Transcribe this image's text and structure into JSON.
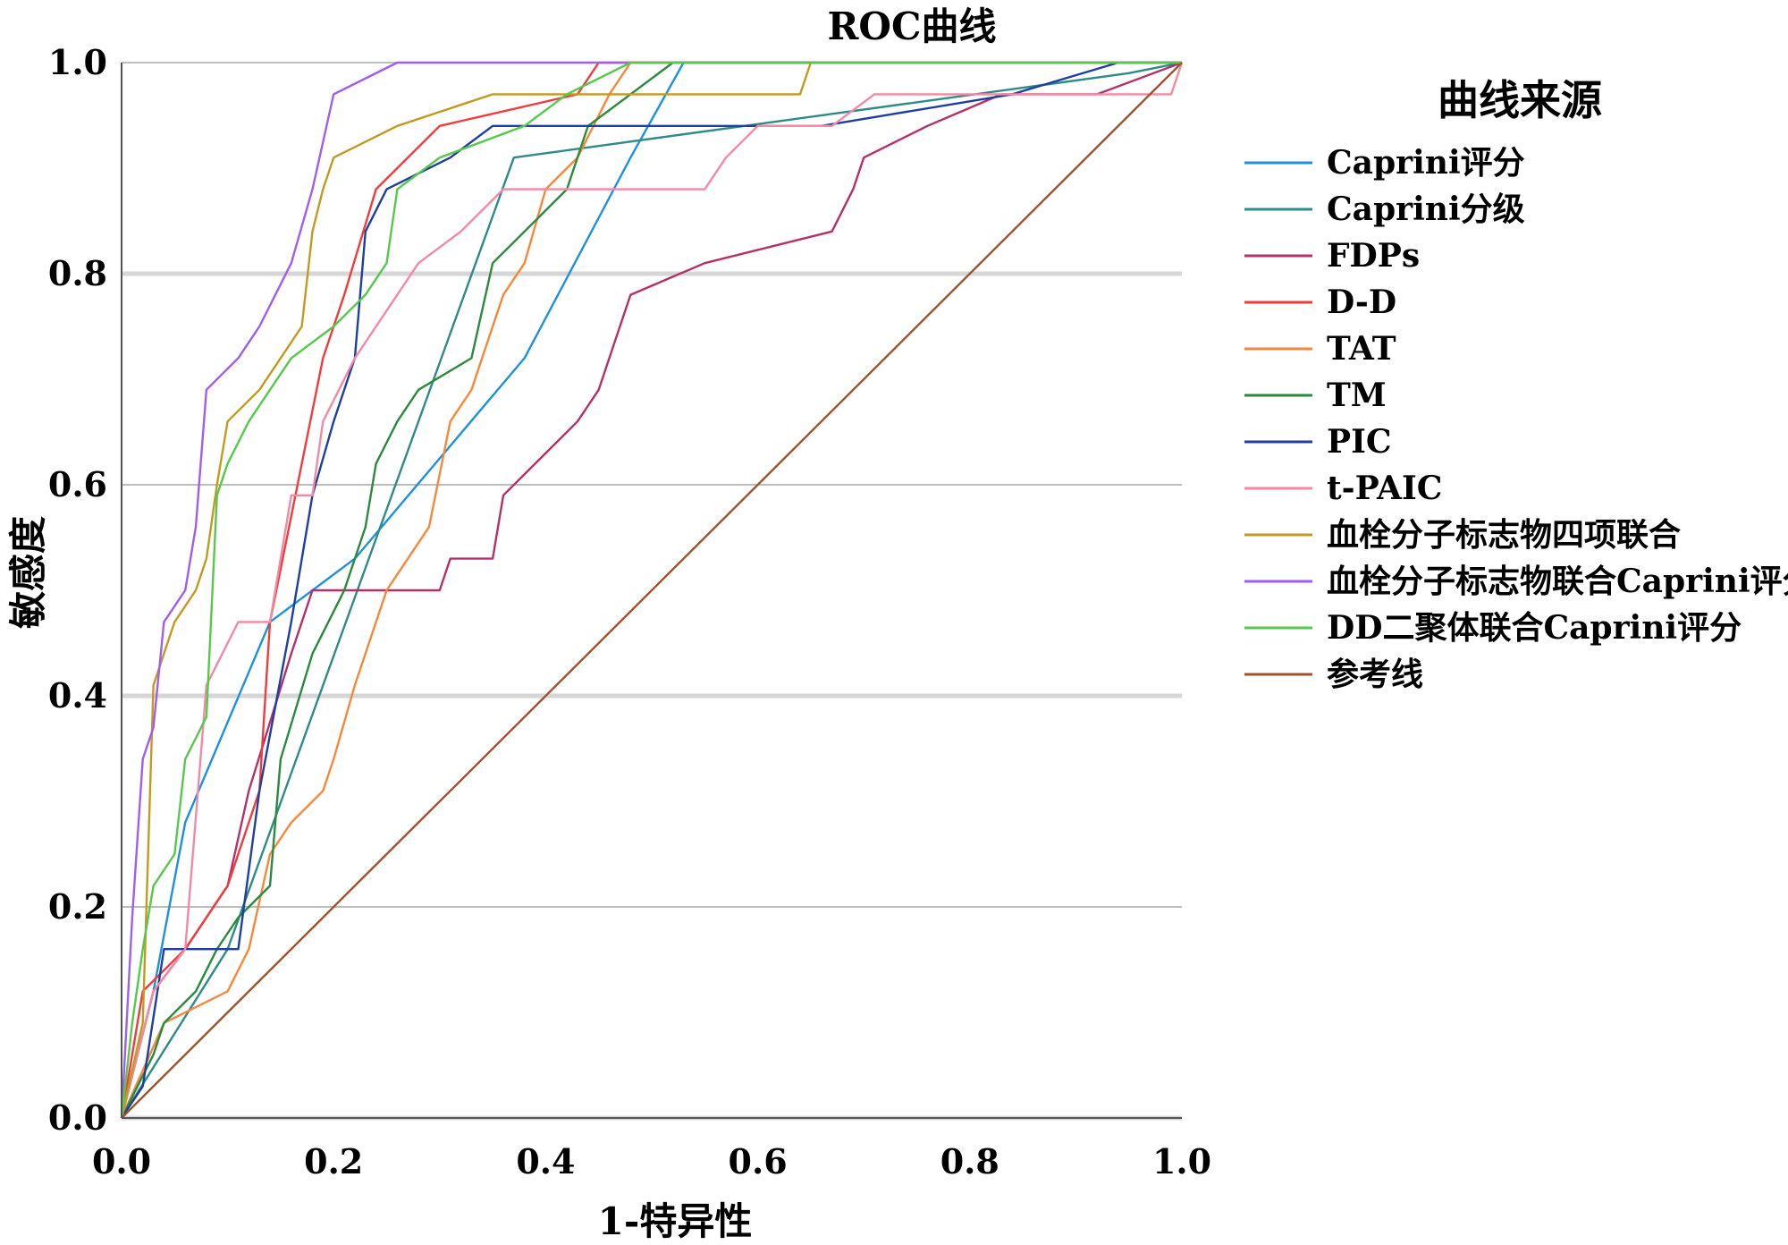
{
  "chart_data": {
    "type": "line",
    "title": "ROC曲线",
    "xlabel": "1-特异性",
    "ylabel": "敏感度",
    "xlim": [
      0,
      1
    ],
    "ylim": [
      0,
      1
    ],
    "x_ticks": [
      "0.0",
      "0.2",
      "0.4",
      "0.6",
      "0.8",
      "1.0"
    ],
    "y_ticks": [
      "0.0",
      "0.2",
      "0.4",
      "0.6",
      "0.8",
      "1.0"
    ],
    "grid": "horizontal",
    "legend_title": "曲线来源",
    "legend_position": "right",
    "series": [
      {
        "name": "Caprini评分",
        "color": "#1e90e0",
        "points": [
          [
            0,
            0
          ],
          [
            0.03,
            0.12
          ],
          [
            0.06,
            0.28
          ],
          [
            0.14,
            0.47
          ],
          [
            0.22,
            0.53
          ],
          [
            0.38,
            0.72
          ],
          [
            0.48,
            0.91
          ],
          [
            0.53,
            1.0
          ],
          [
            1.0,
            1.0
          ]
        ]
      },
      {
        "name": "Caprini分级",
        "color": "#2e8b87",
        "points": [
          [
            0,
            0
          ],
          [
            0.1,
            0.16
          ],
          [
            0.37,
            0.91
          ],
          [
            0.95,
            0.99
          ],
          [
            1.0,
            1.0
          ]
        ]
      },
      {
        "name": "FDPs",
        "color": "#b5306a",
        "points": [
          [
            0,
            0
          ],
          [
            0.03,
            0.12
          ],
          [
            0.06,
            0.16
          ],
          [
            0.1,
            0.22
          ],
          [
            0.12,
            0.31
          ],
          [
            0.16,
            0.44
          ],
          [
            0.18,
            0.5
          ],
          [
            0.3,
            0.5
          ],
          [
            0.31,
            0.53
          ],
          [
            0.35,
            0.53
          ],
          [
            0.36,
            0.59
          ],
          [
            0.4,
            0.63
          ],
          [
            0.43,
            0.66
          ],
          [
            0.45,
            0.69
          ],
          [
            0.47,
            0.75
          ],
          [
            0.48,
            0.78
          ],
          [
            0.55,
            0.81
          ],
          [
            0.67,
            0.84
          ],
          [
            0.69,
            0.88
          ],
          [
            0.7,
            0.91
          ],
          [
            0.76,
            0.94
          ],
          [
            0.83,
            0.97
          ],
          [
            0.92,
            0.97
          ],
          [
            1.0,
            1.0
          ]
        ]
      },
      {
        "name": "D-D",
        "color": "#f03c3c",
        "points": [
          [
            0,
            0
          ],
          [
            0.02,
            0.12
          ],
          [
            0.06,
            0.16
          ],
          [
            0.1,
            0.22
          ],
          [
            0.13,
            0.31
          ],
          [
            0.14,
            0.47
          ],
          [
            0.19,
            0.72
          ],
          [
            0.21,
            0.78
          ],
          [
            0.24,
            0.88
          ],
          [
            0.3,
            0.94
          ],
          [
            0.43,
            0.97
          ],
          [
            0.45,
            1.0
          ],
          [
            1.0,
            1.0
          ]
        ]
      },
      {
        "name": "TAT",
        "color": "#f7883a",
        "points": [
          [
            0,
            0
          ],
          [
            0.04,
            0.09
          ],
          [
            0.1,
            0.12
          ],
          [
            0.12,
            0.16
          ],
          [
            0.14,
            0.25
          ],
          [
            0.16,
            0.28
          ],
          [
            0.19,
            0.31
          ],
          [
            0.2,
            0.34
          ],
          [
            0.22,
            0.41
          ],
          [
            0.25,
            0.5
          ],
          [
            0.29,
            0.56
          ],
          [
            0.31,
            0.66
          ],
          [
            0.33,
            0.69
          ],
          [
            0.34,
            0.72
          ],
          [
            0.36,
            0.78
          ],
          [
            0.38,
            0.81
          ],
          [
            0.4,
            0.88
          ],
          [
            0.43,
            0.91
          ],
          [
            0.46,
            0.97
          ],
          [
            0.48,
            1.0
          ],
          [
            1.0,
            1.0
          ]
        ]
      },
      {
        "name": "TM",
        "color": "#2a8a3e",
        "points": [
          [
            0,
            0
          ],
          [
            0.03,
            0.06
          ],
          [
            0.04,
            0.09
          ],
          [
            0.07,
            0.12
          ],
          [
            0.09,
            0.16
          ],
          [
            0.11,
            0.19
          ],
          [
            0.14,
            0.22
          ],
          [
            0.15,
            0.34
          ],
          [
            0.18,
            0.44
          ],
          [
            0.21,
            0.5
          ],
          [
            0.23,
            0.56
          ],
          [
            0.24,
            0.62
          ],
          [
            0.26,
            0.66
          ],
          [
            0.28,
            0.69
          ],
          [
            0.33,
            0.72
          ],
          [
            0.35,
            0.81
          ],
          [
            0.38,
            0.84
          ],
          [
            0.42,
            0.88
          ],
          [
            0.44,
            0.94
          ],
          [
            0.48,
            0.97
          ],
          [
            0.52,
            1.0
          ],
          [
            1.0,
            1.0
          ]
        ]
      },
      {
        "name": "PIC",
        "color": "#1e3fa0",
        "points": [
          [
            0,
            0
          ],
          [
            0.02,
            0.03
          ],
          [
            0.04,
            0.16
          ],
          [
            0.11,
            0.16
          ],
          [
            0.13,
            0.31
          ],
          [
            0.16,
            0.47
          ],
          [
            0.18,
            0.59
          ],
          [
            0.2,
            0.66
          ],
          [
            0.22,
            0.72
          ],
          [
            0.23,
            0.84
          ],
          [
            0.25,
            0.88
          ],
          [
            0.31,
            0.91
          ],
          [
            0.35,
            0.94
          ],
          [
            0.66,
            0.94
          ],
          [
            0.84,
            0.97
          ],
          [
            0.94,
            1.0
          ],
          [
            1.0,
            1.0
          ]
        ]
      },
      {
        "name": "t-PAIC",
        "color": "#f28aa3",
        "points": [
          [
            0,
            0
          ],
          [
            0.03,
            0.12
          ],
          [
            0.06,
            0.16
          ],
          [
            0.08,
            0.41
          ],
          [
            0.11,
            0.47
          ],
          [
            0.14,
            0.47
          ],
          [
            0.16,
            0.59
          ],
          [
            0.18,
            0.59
          ],
          [
            0.19,
            0.66
          ],
          [
            0.22,
            0.72
          ],
          [
            0.26,
            0.78
          ],
          [
            0.28,
            0.81
          ],
          [
            0.32,
            0.84
          ],
          [
            0.36,
            0.88
          ],
          [
            0.41,
            0.88
          ],
          [
            0.55,
            0.88
          ],
          [
            0.57,
            0.91
          ],
          [
            0.6,
            0.94
          ],
          [
            0.67,
            0.94
          ],
          [
            0.71,
            0.97
          ],
          [
            0.99,
            0.97
          ],
          [
            1.0,
            1.0
          ]
        ]
      },
      {
        "name": "血栓分子标志物四项联合",
        "color": "#c49a1e",
        "points": [
          [
            0,
            0
          ],
          [
            0.02,
            0.09
          ],
          [
            0.03,
            0.41
          ],
          [
            0.04,
            0.44
          ],
          [
            0.05,
            0.47
          ],
          [
            0.07,
            0.5
          ],
          [
            0.08,
            0.53
          ],
          [
            0.09,
            0.6
          ],
          [
            0.1,
            0.66
          ],
          [
            0.13,
            0.69
          ],
          [
            0.15,
            0.72
          ],
          [
            0.17,
            0.75
          ],
          [
            0.18,
            0.84
          ],
          [
            0.19,
            0.88
          ],
          [
            0.2,
            0.91
          ],
          [
            0.26,
            0.94
          ],
          [
            0.35,
            0.97
          ],
          [
            0.64,
            0.97
          ],
          [
            0.65,
            1.0
          ],
          [
            1.0,
            1.0
          ]
        ]
      },
      {
        "name": "血栓分子标志物联合Caprini评分",
        "color": "#a05ef0",
        "points": [
          [
            0,
            0
          ],
          [
            0.01,
            0.19
          ],
          [
            0.02,
            0.34
          ],
          [
            0.03,
            0.37
          ],
          [
            0.04,
            0.47
          ],
          [
            0.06,
            0.5
          ],
          [
            0.07,
            0.56
          ],
          [
            0.08,
            0.69
          ],
          [
            0.11,
            0.72
          ],
          [
            0.13,
            0.75
          ],
          [
            0.16,
            0.81
          ],
          [
            0.18,
            0.88
          ],
          [
            0.2,
            0.97
          ],
          [
            0.26,
            1.0
          ],
          [
            1.0,
            1.0
          ]
        ]
      },
      {
        "name": "DD二聚体联合Caprini评分",
        "color": "#56c84c",
        "points": [
          [
            0,
            0
          ],
          [
            0.01,
            0.09
          ],
          [
            0.02,
            0.16
          ],
          [
            0.03,
            0.22
          ],
          [
            0.05,
            0.25
          ],
          [
            0.06,
            0.34
          ],
          [
            0.08,
            0.38
          ],
          [
            0.09,
            0.59
          ],
          [
            0.1,
            0.62
          ],
          [
            0.12,
            0.66
          ],
          [
            0.14,
            0.69
          ],
          [
            0.16,
            0.72
          ],
          [
            0.2,
            0.75
          ],
          [
            0.23,
            0.78
          ],
          [
            0.25,
            0.81
          ],
          [
            0.26,
            0.88
          ],
          [
            0.3,
            0.91
          ],
          [
            0.38,
            0.94
          ],
          [
            0.42,
            0.97
          ],
          [
            0.48,
            1.0
          ],
          [
            1.0,
            1.0
          ]
        ]
      },
      {
        "name": "参考线",
        "color": "#a0522d",
        "points": [
          [
            0,
            0
          ],
          [
            1,
            1
          ]
        ]
      }
    ]
  }
}
